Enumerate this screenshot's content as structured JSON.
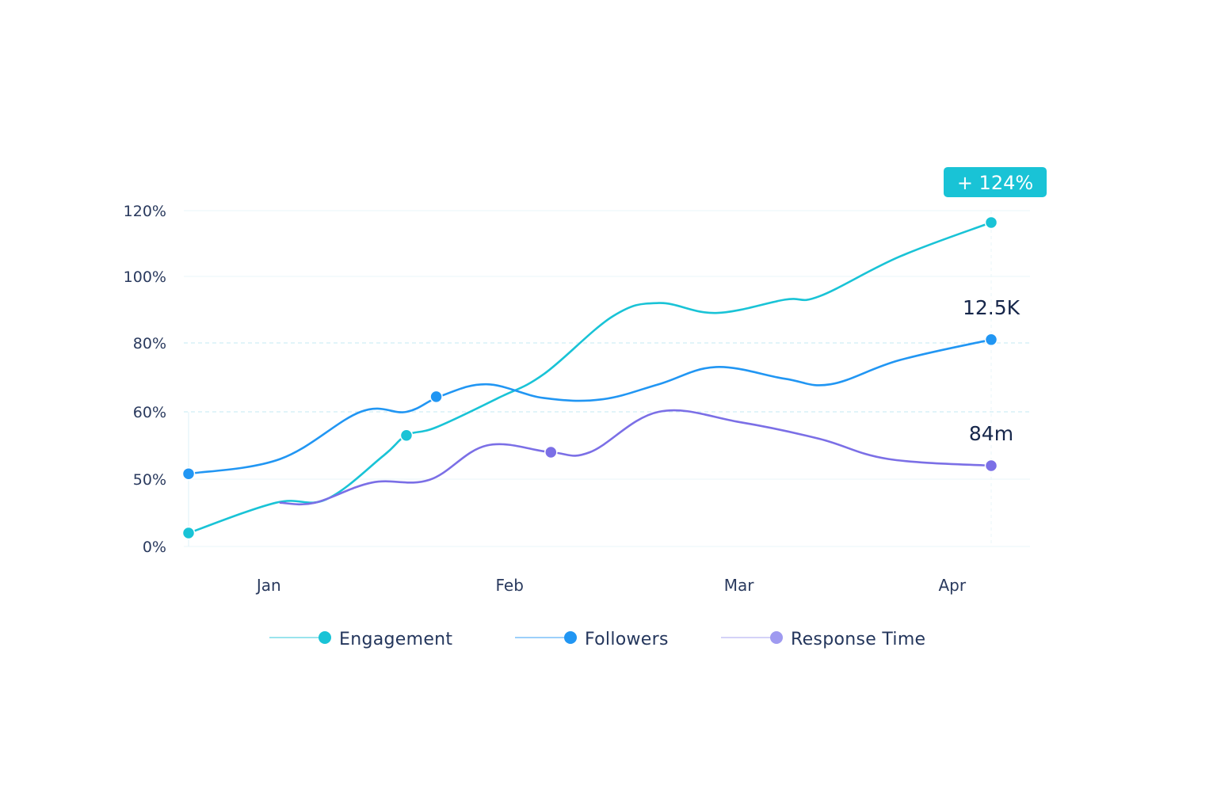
{
  "chart_data": {
    "type": "line",
    "title": "",
    "xlabel": "",
    "ylabel": "",
    "x_range": [
      0,
      3.5
    ],
    "x_ticks": [
      {
        "label": "Jan",
        "x": 0.35
      },
      {
        "label": "Feb",
        "x": 1.4
      },
      {
        "label": "Mar",
        "x": 2.4
      },
      {
        "label": "Apr",
        "x": 3.33
      }
    ],
    "y_ticks": [
      {
        "label": "0%",
        "value": 0
      },
      {
        "label": "50%",
        "value": 1
      },
      {
        "label": "60%",
        "value": 2
      },
      {
        "label": "80%",
        "value": 3
      },
      {
        "label": "100%",
        "value": 4
      },
      {
        "label": "120%",
        "value": 5
      }
    ],
    "ylim": [
      0,
      5
    ],
    "grid": true,
    "legend_position": "bottom",
    "series": [
      {
        "name": "Engagement",
        "color": "#19c3d6",
        "points": [
          {
            "x": 0.0,
            "y": 0.2
          },
          {
            "x": 0.38,
            "y": 0.65
          },
          {
            "x": 0.6,
            "y": 0.7
          },
          {
            "x": 0.85,
            "y": 1.35
          },
          {
            "x": 0.95,
            "y": 1.65
          },
          {
            "x": 1.08,
            "y": 1.77
          },
          {
            "x": 1.35,
            "y": 2.2
          },
          {
            "x": 1.55,
            "y": 2.55
          },
          {
            "x": 1.85,
            "y": 3.4
          },
          {
            "x": 2.05,
            "y": 3.6
          },
          {
            "x": 2.3,
            "y": 3.45
          },
          {
            "x": 2.6,
            "y": 3.65
          },
          {
            "x": 2.75,
            "y": 3.7
          },
          {
            "x": 3.1,
            "y": 4.3
          },
          {
            "x": 3.5,
            "y": 4.82
          }
        ],
        "markers": [
          {
            "x": 0.0,
            "y": 0.2
          },
          {
            "x": 0.95,
            "y": 1.65
          },
          {
            "x": 3.5,
            "y": 4.82
          }
        ]
      },
      {
        "name": "Followers",
        "color": "#2196f3",
        "points": [
          {
            "x": 0.0,
            "y": 1.08
          },
          {
            "x": 0.4,
            "y": 1.3
          },
          {
            "x": 0.75,
            "y": 2.0
          },
          {
            "x": 0.95,
            "y": 2.0
          },
          {
            "x": 1.1,
            "y": 2.23
          },
          {
            "x": 1.3,
            "y": 2.4
          },
          {
            "x": 1.55,
            "y": 2.2
          },
          {
            "x": 1.8,
            "y": 2.18
          },
          {
            "x": 2.05,
            "y": 2.4
          },
          {
            "x": 2.3,
            "y": 2.65
          },
          {
            "x": 2.6,
            "y": 2.48
          },
          {
            "x": 2.8,
            "y": 2.4
          },
          {
            "x": 3.1,
            "y": 2.75
          },
          {
            "x": 3.5,
            "y": 3.05
          }
        ],
        "markers": [
          {
            "x": 0.0,
            "y": 1.08
          },
          {
            "x": 1.08,
            "y": 2.22
          },
          {
            "x": 3.5,
            "y": 3.05
          }
        ]
      },
      {
        "name": "Response Time",
        "color": "#7b6fe6",
        "points": [
          {
            "x": 0.4,
            "y": 0.65
          },
          {
            "x": 0.55,
            "y": 0.65
          },
          {
            "x": 0.8,
            "y": 0.95
          },
          {
            "x": 1.05,
            "y": 0.99
          },
          {
            "x": 1.3,
            "y": 1.5
          },
          {
            "x": 1.58,
            "y": 1.4
          },
          {
            "x": 1.75,
            "y": 1.4
          },
          {
            "x": 2.05,
            "y": 2.0
          },
          {
            "x": 2.4,
            "y": 1.85
          },
          {
            "x": 2.75,
            "y": 1.6
          },
          {
            "x": 3.05,
            "y": 1.3
          },
          {
            "x": 3.5,
            "y": 1.2
          }
        ],
        "markers": [
          {
            "x": 1.58,
            "y": 1.4
          },
          {
            "x": 3.5,
            "y": 1.2
          }
        ]
      }
    ],
    "annotations": [
      {
        "text": "+ 124%",
        "series": "Engagement",
        "style": "badge"
      },
      {
        "text": "12.5K",
        "series": "Followers",
        "style": "label"
      },
      {
        "text": "84m",
        "series": "Response Time",
        "style": "label"
      }
    ],
    "legend": [
      {
        "label": "Engagement",
        "color": "#19c3d6"
      },
      {
        "label": "Followers",
        "color": "#2196f3"
      },
      {
        "label": "Response Time",
        "color": "#9f9af0"
      }
    ]
  }
}
